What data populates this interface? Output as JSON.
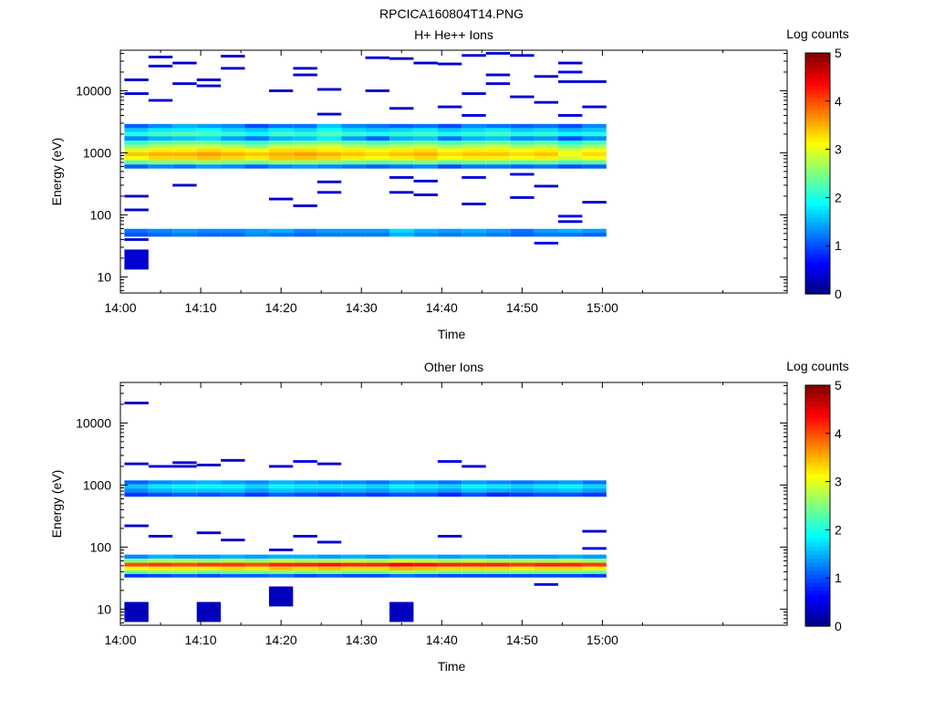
{
  "figure_title": "RPCICA160804T14.PNG",
  "chart_data": [
    {
      "type": "heatmap",
      "title": "H+ He++ Ions",
      "xlabel": "Time",
      "ylabel": "Energy (eV)",
      "x_ticks": [
        "14:00",
        "14:10",
        "14:20",
        "14:30",
        "14:40",
        "14:50",
        "15:00"
      ],
      "y_ticks": [
        "10",
        "100",
        "1000",
        "10000"
      ],
      "y_scale": "log",
      "ylim": [
        5.5,
        45000
      ],
      "xlim": [
        "14:00",
        "15:23"
      ],
      "colorbar_label": "Log counts",
      "colorbar_ticks": [
        "0",
        "1",
        "2",
        "3",
        "4",
        "5"
      ],
      "clim": [
        0,
        5
      ],
      "time_columns": [
        "14:02",
        "14:05",
        "14:08",
        "14:11",
        "14:14",
        "14:17",
        "14:20",
        "14:23",
        "14:26",
        "14:29",
        "14:32",
        "14:35",
        "14:38",
        "14:41",
        "14:44",
        "14:47",
        "14:50",
        "14:53",
        "14:56",
        "14:59"
      ],
      "energy_rows_eV": [
        2700,
        2300,
        2000,
        1700,
        1450,
        1250,
        1100,
        950,
        820,
        700,
        600,
        55,
        48
      ],
      "log_counts": [
        [
          1.1,
          1.3,
          1.5,
          1.4,
          1.3,
          1.0,
          1.2,
          1.2,
          1.6,
          1.3,
          1.2,
          1.1,
          1.2,
          1.0,
          1.3,
          1.2,
          1.1,
          1.2,
          1.0,
          1.3
        ],
        [
          1.6,
          1.8,
          1.8,
          1.9,
          1.7,
          1.6,
          1.8,
          1.7,
          1.9,
          1.7,
          1.6,
          1.7,
          1.8,
          1.6,
          1.7,
          1.8,
          1.6,
          1.7,
          1.5,
          1.6
        ],
        [
          2.0,
          2.2,
          2.3,
          2.2,
          2.1,
          1.9,
          2.2,
          2.1,
          2.3,
          2.1,
          2.0,
          2.1,
          2.2,
          2.0,
          2.1,
          2.2,
          2.0,
          2.1,
          1.9,
          2.0
        ],
        [
          1.3,
          1.5,
          1.6,
          1.7,
          1.4,
          1.2,
          1.5,
          1.6,
          1.8,
          1.4,
          1.1,
          1.5,
          1.6,
          1.2,
          1.5,
          1.6,
          1.3,
          1.4,
          1.0,
          1.3
        ],
        [
          2.1,
          2.3,
          2.4,
          2.4,
          2.2,
          2.1,
          2.3,
          2.4,
          2.5,
          2.3,
          2.2,
          2.3,
          2.4,
          2.2,
          2.3,
          2.4,
          2.2,
          2.3,
          2.0,
          2.2
        ],
        [
          2.6,
          2.8,
          2.9,
          2.9,
          2.8,
          2.6,
          2.9,
          2.9,
          3.0,
          2.8,
          2.7,
          2.8,
          2.9,
          2.7,
          2.8,
          2.9,
          2.7,
          2.8,
          2.5,
          2.7
        ],
        [
          3.0,
          3.2,
          3.2,
          3.3,
          3.2,
          3.1,
          3.3,
          3.3,
          3.2,
          3.2,
          3.1,
          3.2,
          3.3,
          3.1,
          3.2,
          3.2,
          3.1,
          3.2,
          2.9,
          3.1
        ],
        [
          3.4,
          3.5,
          3.5,
          3.6,
          3.5,
          3.4,
          3.5,
          3.6,
          3.5,
          3.4,
          3.3,
          3.4,
          3.5,
          3.3,
          3.4,
          3.4,
          3.3,
          3.4,
          3.1,
          3.3
        ],
        [
          3.1,
          3.3,
          3.3,
          3.4,
          3.3,
          3.2,
          3.4,
          3.4,
          3.3,
          3.2,
          3.1,
          3.2,
          3.3,
          3.1,
          3.2,
          3.2,
          3.1,
          3.2,
          2.9,
          3.1
        ],
        [
          2.3,
          2.5,
          2.5,
          2.6,
          2.5,
          2.4,
          2.6,
          2.6,
          2.5,
          2.4,
          2.3,
          2.4,
          2.5,
          2.3,
          2.4,
          2.4,
          2.3,
          2.4,
          2.2,
          2.3
        ],
        [
          1.1,
          1.3,
          1.2,
          1.4,
          1.3,
          1.1,
          1.3,
          1.4,
          1.3,
          1.2,
          1.1,
          1.2,
          1.3,
          1.0,
          1.2,
          1.2,
          1.1,
          1.2,
          1.0,
          1.1
        ],
        [
          1.2,
          1.3,
          1.4,
          1.3,
          1.3,
          1.4,
          1.5,
          1.3,
          1.4,
          1.4,
          1.4,
          1.7,
          1.5,
          1.4,
          1.5,
          1.4,
          1.2,
          1.4,
          1.5,
          1.4
        ],
        [
          1.0,
          1.1,
          1.2,
          1.1,
          1.1,
          1.3,
          1.2,
          1.1,
          1.2,
          1.2,
          1.2,
          1.5,
          1.3,
          1.2,
          1.3,
          1.2,
          1.1,
          1.2,
          1.2,
          1.1
        ]
      ],
      "sparse_bins": [
        {
          "t": "14:02",
          "e": 15000,
          "v": 0.4
        },
        {
          "t": "14:02",
          "e": 9000,
          "v": 0.4
        },
        {
          "t": "14:02",
          "e": 200,
          "v": 0.4
        },
        {
          "t": "14:02",
          "e": 120,
          "v": 0.4
        },
        {
          "t": "14:02",
          "e": 40,
          "v": 0.4
        },
        {
          "t": "14:02",
          "e": 19,
          "v": 0.4
        },
        {
          "t": "14:05",
          "e": 35000,
          "v": 0.4
        },
        {
          "t": "14:05",
          "e": 25000,
          "v": 0.4
        },
        {
          "t": "14:05",
          "e": 7000,
          "v": 0.4
        },
        {
          "t": "14:08",
          "e": 28000,
          "v": 0.4
        },
        {
          "t": "14:08",
          "e": 13000,
          "v": 0.4
        },
        {
          "t": "14:08",
          "e": 300,
          "v": 0.4
        },
        {
          "t": "14:11",
          "e": 15000,
          "v": 0.4
        },
        {
          "t": "14:11",
          "e": 12000,
          "v": 0.4
        },
        {
          "t": "14:14",
          "e": 36000,
          "v": 0.4
        },
        {
          "t": "14:14",
          "e": 23000,
          "v": 0.4
        },
        {
          "t": "14:20",
          "e": 10000,
          "v": 0.4
        },
        {
          "t": "14:20",
          "e": 180,
          "v": 0.4
        },
        {
          "t": "14:23",
          "e": 23000,
          "v": 0.4
        },
        {
          "t": "14:23",
          "e": 18000,
          "v": 0.4
        },
        {
          "t": "14:23",
          "e": 140,
          "v": 0.4
        },
        {
          "t": "14:26",
          "e": 10500,
          "v": 0.4
        },
        {
          "t": "14:26",
          "e": 4200,
          "v": 0.4
        },
        {
          "t": "14:26",
          "e": 340,
          "v": 0.4
        },
        {
          "t": "14:26",
          "e": 230,
          "v": 0.4
        },
        {
          "t": "14:32",
          "e": 34000,
          "v": 0.4
        },
        {
          "t": "14:32",
          "e": 10000,
          "v": 0.4
        },
        {
          "t": "14:35",
          "e": 33000,
          "v": 0.4
        },
        {
          "t": "14:35",
          "e": 5200,
          "v": 0.4
        },
        {
          "t": "14:35",
          "e": 400,
          "v": 0.4
        },
        {
          "t": "14:35",
          "e": 230,
          "v": 0.4
        },
        {
          "t": "14:38",
          "e": 28000,
          "v": 0.4
        },
        {
          "t": "14:38",
          "e": 350,
          "v": 0.4
        },
        {
          "t": "14:38",
          "e": 210,
          "v": 0.4
        },
        {
          "t": "14:41",
          "e": 27000,
          "v": 0.4
        },
        {
          "t": "14:41",
          "e": 5500,
          "v": 0.4
        },
        {
          "t": "14:44",
          "e": 37000,
          "v": 0.4
        },
        {
          "t": "14:44",
          "e": 9000,
          "v": 0.4
        },
        {
          "t": "14:44",
          "e": 4000,
          "v": 0.4
        },
        {
          "t": "14:44",
          "e": 400,
          "v": 0.4
        },
        {
          "t": "14:44",
          "e": 150,
          "v": 0.4
        },
        {
          "t": "14:47",
          "e": 40000,
          "v": 0.4
        },
        {
          "t": "14:47",
          "e": 18000,
          "v": 0.4
        },
        {
          "t": "14:47",
          "e": 13000,
          "v": 0.4
        },
        {
          "t": "14:50",
          "e": 37000,
          "v": 0.4
        },
        {
          "t": "14:50",
          "e": 8000,
          "v": 0.4
        },
        {
          "t": "14:50",
          "e": 450,
          "v": 0.4
        },
        {
          "t": "14:50",
          "e": 190,
          "v": 0.4
        },
        {
          "t": "14:53",
          "e": 17000,
          "v": 0.4
        },
        {
          "t": "14:53",
          "e": 6500,
          "v": 0.4
        },
        {
          "t": "14:53",
          "e": 290,
          "v": 0.4
        },
        {
          "t": "14:53",
          "e": 35,
          "v": 0.6
        },
        {
          "t": "14:56",
          "e": 28000,
          "v": 0.4
        },
        {
          "t": "14:56",
          "e": 20000,
          "v": 0.6
        },
        {
          "t": "14:56",
          "e": 14000,
          "v": 0.4
        },
        {
          "t": "14:56",
          "e": 4000,
          "v": 0.4
        },
        {
          "t": "14:56",
          "e": 95,
          "v": 0.6
        },
        {
          "t": "14:56",
          "e": 78,
          "v": 0.4
        },
        {
          "t": "14:59",
          "e": 14000,
          "v": 0.4
        },
        {
          "t": "14:59",
          "e": 5500,
          "v": 0.4
        },
        {
          "t": "14:59",
          "e": 160,
          "v": 0.4
        }
      ]
    },
    {
      "type": "heatmap",
      "title": "Other Ions",
      "xlabel": "Time",
      "ylabel": "Energy (eV)",
      "x_ticks": [
        "14:00",
        "14:10",
        "14:20",
        "14:30",
        "14:40",
        "14:50",
        "15:00"
      ],
      "y_ticks": [
        "10",
        "100",
        "1000",
        "10000"
      ],
      "y_scale": "log",
      "ylim": [
        5.5,
        45000
      ],
      "xlim": [
        "14:00",
        "15:23"
      ],
      "colorbar_label": "Log counts",
      "colorbar_ticks": [
        "0",
        "1",
        "2",
        "3",
        "4",
        "5"
      ],
      "clim": [
        0,
        5
      ],
      "time_columns": [
        "14:02",
        "14:05",
        "14:08",
        "14:11",
        "14:14",
        "14:17",
        "14:20",
        "14:23",
        "14:26",
        "14:29",
        "14:32",
        "14:35",
        "14:38",
        "14:41",
        "14:44",
        "14:47",
        "14:50",
        "14:53",
        "14:56",
        "14:59"
      ],
      "energy_rows_eV": [
        1100,
        950,
        820,
        700,
        70,
        60,
        52,
        45,
        39,
        35
      ],
      "log_counts": [
        [
          1.1,
          1.3,
          1.4,
          1.5,
          1.4,
          1.3,
          1.5,
          1.4,
          1.3,
          1.3,
          1.2,
          1.4,
          1.3,
          1.2,
          1.4,
          1.3,
          1.2,
          1.3,
          1.4,
          1.2
        ],
        [
          1.6,
          1.8,
          1.9,
          1.9,
          1.9,
          1.7,
          1.9,
          1.8,
          1.8,
          1.8,
          1.7,
          1.9,
          1.8,
          1.7,
          1.9,
          1.8,
          1.7,
          1.8,
          1.9,
          1.7
        ],
        [
          1.3,
          1.5,
          1.6,
          1.6,
          1.6,
          1.4,
          1.6,
          1.5,
          1.5,
          1.5,
          1.4,
          1.6,
          1.5,
          1.4,
          1.6,
          1.5,
          1.4,
          1.5,
          1.6,
          1.4
        ],
        [
          0.9,
          1.0,
          1.1,
          1.0,
          1.1,
          0.9,
          1.1,
          1.0,
          0.9,
          1.0,
          0.9,
          1.0,
          1.0,
          0.8,
          1.0,
          0.8,
          0.9,
          1.0,
          1.0,
          0.9
        ],
        [
          1.3,
          1.5,
          1.4,
          1.4,
          1.5,
          1.4,
          1.5,
          1.5,
          1.4,
          1.5,
          1.4,
          1.5,
          1.5,
          1.4,
          1.5,
          1.4,
          1.4,
          1.4,
          1.5,
          1.4
        ],
        [
          2.5,
          2.7,
          2.7,
          2.6,
          2.7,
          2.6,
          2.8,
          2.7,
          2.7,
          2.8,
          2.7,
          2.9,
          2.8,
          2.7,
          2.8,
          2.7,
          2.7,
          2.7,
          2.8,
          2.6
        ],
        [
          4.0,
          4.1,
          4.0,
          4.1,
          4.1,
          4.0,
          4.2,
          4.2,
          4.3,
          4.2,
          4.2,
          4.4,
          4.3,
          4.2,
          4.2,
          4.2,
          4.1,
          4.2,
          4.2,
          4.1
        ],
        [
          3.1,
          3.2,
          3.2,
          3.2,
          3.3,
          3.2,
          3.4,
          3.3,
          3.4,
          3.3,
          3.3,
          3.5,
          3.4,
          3.3,
          3.3,
          3.3,
          3.2,
          3.3,
          3.3,
          3.2
        ],
        [
          2.3,
          2.5,
          2.5,
          2.3,
          2.4,
          2.4,
          2.5,
          2.4,
          2.5,
          2.4,
          2.4,
          2.6,
          2.5,
          2.4,
          2.4,
          2.4,
          2.4,
          2.4,
          2.4,
          2.3
        ],
        [
          0.9,
          1.0,
          1.1,
          1.0,
          1.1,
          1.1,
          1.2,
          1.0,
          1.1,
          1.0,
          1.0,
          1.2,
          1.1,
          1.0,
          1.0,
          1.0,
          1.0,
          1.0,
          1.0,
          0.9
        ]
      ],
      "sparse_bins": [
        {
          "t": "14:02",
          "e": 21000,
          "v": 0.4
        },
        {
          "t": "14:02",
          "e": 2200,
          "v": 0.4
        },
        {
          "t": "14:02",
          "e": 220,
          "v": 0.4
        },
        {
          "t": "14:02",
          "e": 9,
          "v": 0.3
        },
        {
          "t": "14:05",
          "e": 2000,
          "v": 0.5
        },
        {
          "t": "14:05",
          "e": 150,
          "v": 0.4
        },
        {
          "t": "14:08",
          "e": 2300,
          "v": 0.4
        },
        {
          "t": "14:08",
          "e": 2000,
          "v": 0.4
        },
        {
          "t": "14:11",
          "e": 2100,
          "v": 0.4
        },
        {
          "t": "14:11",
          "e": 170,
          "v": 0.4
        },
        {
          "t": "14:11",
          "e": 9,
          "v": 0.3
        },
        {
          "t": "14:14",
          "e": 2500,
          "v": 0.4
        },
        {
          "t": "14:14",
          "e": 130,
          "v": 0.4
        },
        {
          "t": "14:20",
          "e": 2000,
          "v": 0.4
        },
        {
          "t": "14:20",
          "e": 90,
          "v": 0.4
        },
        {
          "t": "14:20",
          "e": 16,
          "v": 0.3
        },
        {
          "t": "14:23",
          "e": 2400,
          "v": 0.5
        },
        {
          "t": "14:23",
          "e": 150,
          "v": 0.4
        },
        {
          "t": "14:26",
          "e": 2200,
          "v": 0.4
        },
        {
          "t": "14:26",
          "e": 120,
          "v": 0.4
        },
        {
          "t": "14:35",
          "e": 9,
          "v": 0.3
        },
        {
          "t": "14:41",
          "e": 2400,
          "v": 0.5
        },
        {
          "t": "14:41",
          "e": 150,
          "v": 0.4
        },
        {
          "t": "14:44",
          "e": 2000,
          "v": 0.4
        },
        {
          "t": "14:53",
          "e": 25,
          "v": 0.5
        },
        {
          "t": "14:59",
          "e": 180,
          "v": 0.4
        },
        {
          "t": "14:59",
          "e": 95,
          "v": 0.5
        }
      ]
    }
  ]
}
